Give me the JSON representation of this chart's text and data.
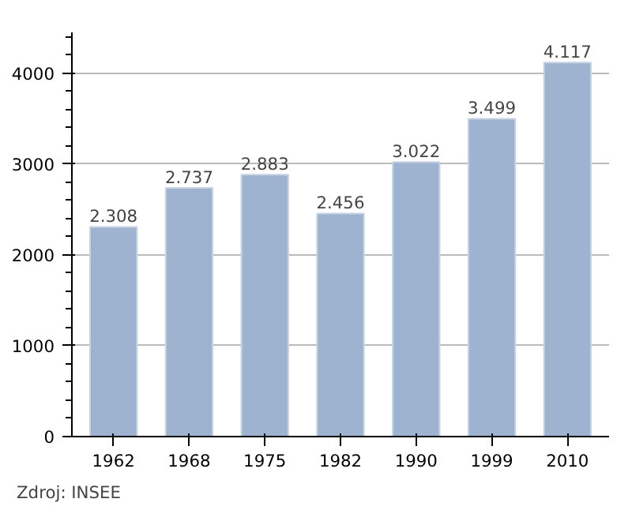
{
  "chart_data": {
    "type": "bar",
    "categories": [
      "1962",
      "1968",
      "1975",
      "1982",
      "1990",
      "1999",
      "2010"
    ],
    "values": [
      2308,
      2737,
      2883,
      2456,
      3022,
      3499,
      4117
    ],
    "value_labels": [
      "2.308",
      "2.737",
      "2.883",
      "2.456",
      "3.022",
      "3.499",
      "4.117"
    ],
    "color": "#9db3cf",
    "ylim": [
      0,
      4450
    ],
    "yticks": [
      0,
      1000,
      2000,
      3000,
      4000
    ],
    "grid": "y",
    "annotations": [
      "Zdroj: INSEE"
    ]
  }
}
